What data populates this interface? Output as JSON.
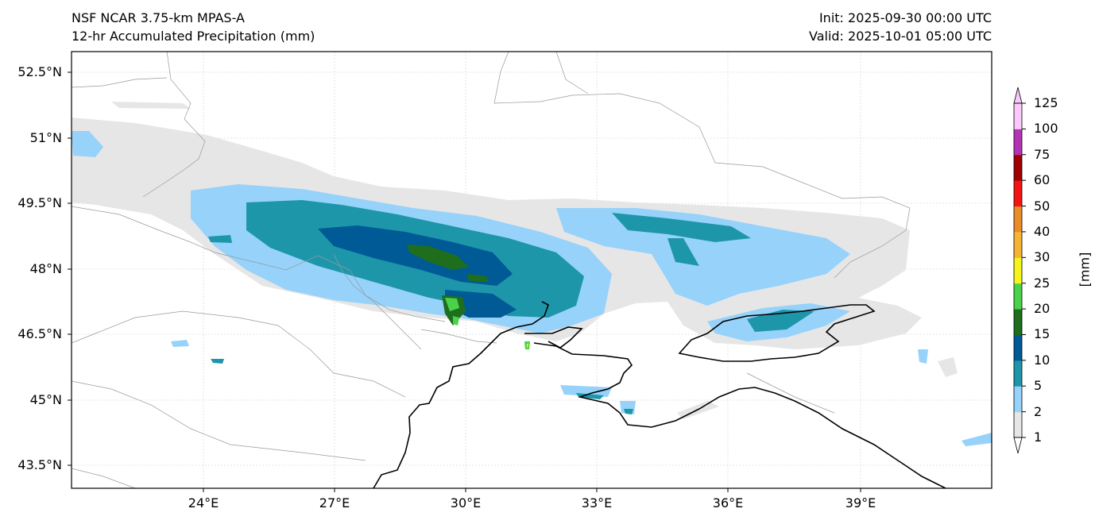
{
  "header": {
    "model": "NSF NCAR 3.75-km MPAS-A",
    "field": "12-hr Accumulated Precipitation (mm)",
    "init": "Init: 2025-09-30 00:00 UTC",
    "valid": "Valid: 2025-10-01 05:00 UTC"
  },
  "axes": {
    "lat_labels": [
      "52.5°N",
      "51°N",
      "49.5°N",
      "48°N",
      "46.5°N",
      "45°N",
      "43.5°N"
    ],
    "lon_labels": [
      "24°E",
      "27°E",
      "30°E",
      "33°E",
      "36°E",
      "39°E"
    ]
  },
  "colorbar": {
    "units": "[mm]",
    "levels": [
      "1",
      "2",
      "5",
      "10",
      "15",
      "20",
      "25",
      "30",
      "40",
      "50",
      "60",
      "75",
      "100",
      "125"
    ],
    "colors": [
      "#e6e6e6",
      "#96d2fa",
      "#1e96aa",
      "#005a96",
      "#1e6e1e",
      "#4bd24b",
      "#f5f51e",
      "#f5b432",
      "#eb8c28",
      "#f51414",
      "#a00000",
      "#b432b4",
      "#fac8fa"
    ]
  }
}
